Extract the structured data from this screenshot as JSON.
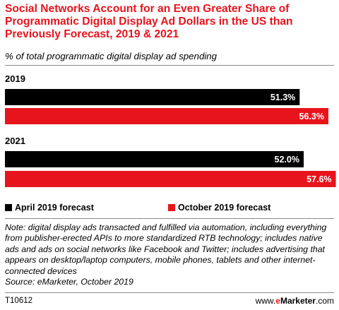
{
  "title": "Social Networks Account for an Even Greater Share of Programmatic Digital Display Ad Dollars in the US than Previously Forecast, 2019 & 2021",
  "subtitle": "% of total programmatic digital display ad spending",
  "chart_data": {
    "type": "bar",
    "orientation": "horizontal",
    "categories": [
      "2019",
      "2021"
    ],
    "series": [
      {
        "name": "April 2019 forecast",
        "color": "#000000",
        "values": [
          51.3,
          52.0
        ],
        "labels": [
          "51.3%",
          "52.0%"
        ]
      },
      {
        "name": "October 2019 forecast",
        "color": "#e8141d",
        "values": [
          56.3,
          57.6
        ],
        "labels": [
          "56.3%",
          "57.6%"
        ]
      }
    ],
    "xlim": [
      0,
      59.5
    ],
    "grid": false,
    "legend_position": "bottom-left"
  },
  "note": "Note: digital display ads transacted and fulfilled via automation, including everything from publisher-erected APIs to more standardized RTB technology; includes native ads and ads on social networks like Facebook and Twitter; includes advertising that appears on desktop/laptop computers, mobile phones, tablets and other internet-connected devices",
  "source": "Source: eMarketer, October 2019",
  "footer": {
    "chart_id": "T10612",
    "site_prefix": "www.",
    "site_e": "e",
    "site_brand": "Marketer",
    "site_suffix": ".com"
  }
}
